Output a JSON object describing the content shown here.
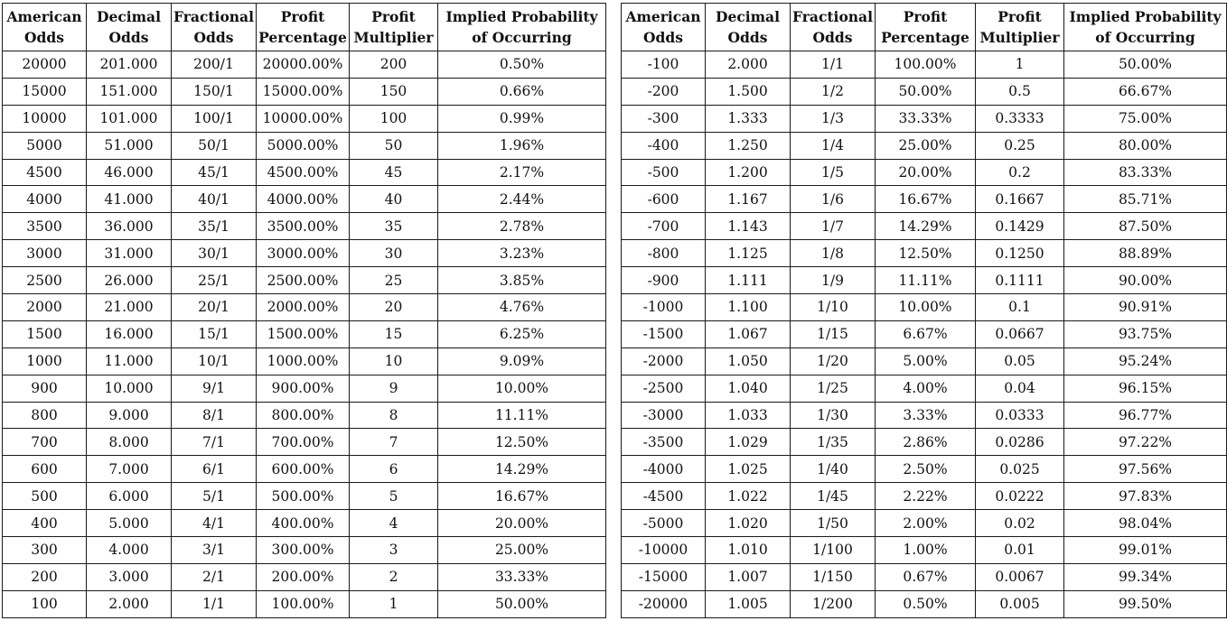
{
  "tables": [
    {
      "headers": [
        [
          "American",
          "Odds"
        ],
        [
          "Decimal",
          "Odds"
        ],
        [
          "Fractional",
          "Odds"
        ],
        [
          "Profit",
          "Percentage"
        ],
        [
          "Profit",
          "Multiplier"
        ],
        [
          "Implied Probability",
          "of Occurring"
        ]
      ],
      "rows": [
        [
          "20000",
          "201.000",
          "200/1",
          "20000.00%",
          "200",
          "0.50%"
        ],
        [
          "15000",
          "151.000",
          "150/1",
          "15000.00%",
          "150",
          "0.66%"
        ],
        [
          "10000",
          "101.000",
          "100/1",
          "10000.00%",
          "100",
          "0.99%"
        ],
        [
          "5000",
          "51.000",
          "50/1",
          "5000.00%",
          "50",
          "1.96%"
        ],
        [
          "4500",
          "46.000",
          "45/1",
          "4500.00%",
          "45",
          "2.17%"
        ],
        [
          "4000",
          "41.000",
          "40/1",
          "4000.00%",
          "40",
          "2.44%"
        ],
        [
          "3500",
          "36.000",
          "35/1",
          "3500.00%",
          "35",
          "2.78%"
        ],
        [
          "3000",
          "31.000",
          "30/1",
          "3000.00%",
          "30",
          "3.23%"
        ],
        [
          "2500",
          "26.000",
          "25/1",
          "2500.00%",
          "25",
          "3.85%"
        ],
        [
          "2000",
          "21.000",
          "20/1",
          "2000.00%",
          "20",
          "4.76%"
        ],
        [
          "1500",
          "16.000",
          "15/1",
          "1500.00%",
          "15",
          "6.25%"
        ],
        [
          "1000",
          "11.000",
          "10/1",
          "1000.00%",
          "10",
          "9.09%"
        ],
        [
          "900",
          "10.000",
          "9/1",
          "900.00%",
          "9",
          "10.00%"
        ],
        [
          "800",
          "9.000",
          "8/1",
          "800.00%",
          "8",
          "11.11%"
        ],
        [
          "700",
          "8.000",
          "7/1",
          "700.00%",
          "7",
          "12.50%"
        ],
        [
          "600",
          "7.000",
          "6/1",
          "600.00%",
          "6",
          "14.29%"
        ],
        [
          "500",
          "6.000",
          "5/1",
          "500.00%",
          "5",
          "16.67%"
        ],
        [
          "400",
          "5.000",
          "4/1",
          "400.00%",
          "4",
          "20.00%"
        ],
        [
          "300",
          "4.000",
          "3/1",
          "300.00%",
          "3",
          "25.00%"
        ],
        [
          "200",
          "3.000",
          "2/1",
          "200.00%",
          "2",
          "33.33%"
        ],
        [
          "100",
          "2.000",
          "1/1",
          "100.00%",
          "1",
          "50.00%"
        ]
      ]
    },
    {
      "headers": [
        [
          "American",
          "Odds"
        ],
        [
          "Decimal",
          "Odds"
        ],
        [
          "Fractional",
          "Odds"
        ],
        [
          "Profit",
          "Percentage"
        ],
        [
          "Profit",
          "Multiplier"
        ],
        [
          "Implied Probability",
          "of Occurring"
        ]
      ],
      "rows": [
        [
          "-100",
          "2.000",
          "1/1",
          "100.00%",
          "1",
          "50.00%"
        ],
        [
          "-200",
          "1.500",
          "1/2",
          "50.00%",
          "0.5",
          "66.67%"
        ],
        [
          "-300",
          "1.333",
          "1/3",
          "33.33%",
          "0.3333",
          "75.00%"
        ],
        [
          "-400",
          "1.250",
          "1/4",
          "25.00%",
          "0.25",
          "80.00%"
        ],
        [
          "-500",
          "1.200",
          "1/5",
          "20.00%",
          "0.2",
          "83.33%"
        ],
        [
          "-600",
          "1.167",
          "1/6",
          "16.67%",
          "0.1667",
          "85.71%"
        ],
        [
          "-700",
          "1.143",
          "1/7",
          "14.29%",
          "0.1429",
          "87.50%"
        ],
        [
          "-800",
          "1.125",
          "1/8",
          "12.50%",
          "0.1250",
          "88.89%"
        ],
        [
          "-900",
          "1.111",
          "1/9",
          "11.11%",
          "0.1111",
          "90.00%"
        ],
        [
          "-1000",
          "1.100",
          "1/10",
          "10.00%",
          "0.1",
          "90.91%"
        ],
        [
          "-1500",
          "1.067",
          "1/15",
          "6.67%",
          "0.0667",
          "93.75%"
        ],
        [
          "-2000",
          "1.050",
          "1/20",
          "5.00%",
          "0.05",
          "95.24%"
        ],
        [
          "-2500",
          "1.040",
          "1/25",
          "4.00%",
          "0.04",
          "96.15%"
        ],
        [
          "-3000",
          "1.033",
          "1/30",
          "3.33%",
          "0.0333",
          "96.77%"
        ],
        [
          "-3500",
          "1.029",
          "1/35",
          "2.86%",
          "0.0286",
          "97.22%"
        ],
        [
          "-4000",
          "1.025",
          "1/40",
          "2.50%",
          "0.025",
          "97.56%"
        ],
        [
          "-4500",
          "1.022",
          "1/45",
          "2.22%",
          "0.0222",
          "97.83%"
        ],
        [
          "-5000",
          "1.020",
          "1/50",
          "2.00%",
          "0.02",
          "98.04%"
        ],
        [
          "-10000",
          "1.010",
          "1/100",
          "1.00%",
          "0.01",
          "99.01%"
        ],
        [
          "-15000",
          "1.007",
          "1/150",
          "0.67%",
          "0.0067",
          "99.34%"
        ],
        [
          "-20000",
          "1.005",
          "1/200",
          "0.50%",
          "0.005",
          "99.50%"
        ]
      ]
    }
  ]
}
